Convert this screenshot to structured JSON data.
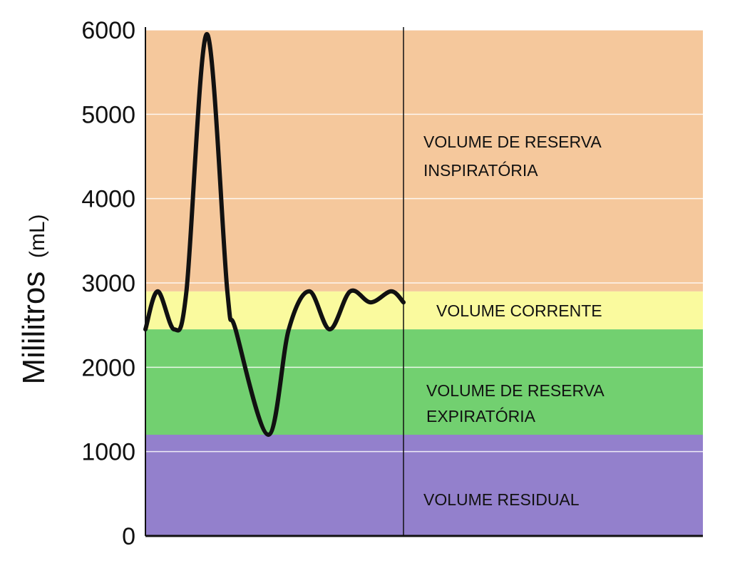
{
  "chart_data": {
    "type": "area",
    "ylabel": "Mililitros",
    "yunit": "(mL)",
    "ylim": [
      0,
      6000
    ],
    "yticks": [
      "0",
      "1000",
      "2000",
      "3000",
      "4000",
      "5000",
      "6000"
    ],
    "grid": true,
    "regions": [
      {
        "name": "residual",
        "from": 0,
        "to": 1200,
        "color": "#9380cc",
        "label_lines": [
          "VOLUME RESIDUAL"
        ]
      },
      {
        "name": "expiratory-reserve",
        "from": 1200,
        "to": 2450,
        "color": "#72d070",
        "label_lines": [
          "VOLUME DE RESERVA",
          "EXPIRATÓRIA"
        ]
      },
      {
        "name": "tidal",
        "from": 2450,
        "to": 2900,
        "color": "#fafa9e",
        "label_lines": [
          "VOLUME CORRENTE"
        ]
      },
      {
        "name": "inspiratory-reserve",
        "from": 2900,
        "to": 6000,
        "color": "#f5c89c",
        "label_lines": [
          "VOLUME DE RESERVA",
          "INSPIRATÓRIA"
        ]
      }
    ],
    "trace": {
      "x": [
        0,
        0.3,
        0.7,
        1.0,
        1.5,
        2.0,
        2.2,
        3.0,
        3.5,
        4.0,
        4.5,
        5.0,
        5.5,
        6.0,
        6.3
      ],
      "y": [
        2450,
        2900,
        2450,
        2900,
        5950,
        2900,
        2450,
        1200,
        2450,
        2900,
        2450,
        2900,
        2770,
        2900,
        2770
      ]
    }
  }
}
